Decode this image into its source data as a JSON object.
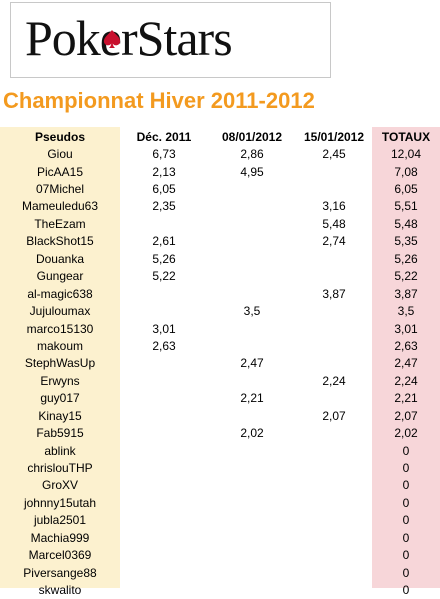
{
  "logo": {
    "text": "PokerStars"
  },
  "title": "Championnat Hiver 2011-2012",
  "columns": [
    "Pseudos",
    "Déc. 2011",
    "08/01/2012",
    "15/01/2012",
    "TOTAUX"
  ],
  "rows": [
    {
      "pseudo": "Giou",
      "dec": "6,73",
      "d0801": "2,86",
      "d1501": "2,45",
      "total": "12,04"
    },
    {
      "pseudo": "PicAA15",
      "dec": "2,13",
      "d0801": "4,95",
      "d1501": "",
      "total": "7,08"
    },
    {
      "pseudo": "07Michel",
      "dec": "6,05",
      "d0801": "",
      "d1501": "",
      "total": "6,05"
    },
    {
      "pseudo": "Mameuledu63",
      "dec": "2,35",
      "d0801": "",
      "d1501": "3,16",
      "total": "5,51"
    },
    {
      "pseudo": "TheEzam",
      "dec": "",
      "d0801": "",
      "d1501": "5,48",
      "total": "5,48"
    },
    {
      "pseudo": "BlackShot15",
      "dec": "2,61",
      "d0801": "",
      "d1501": "2,74",
      "total": "5,35"
    },
    {
      "pseudo": "Douanka",
      "dec": "5,26",
      "d0801": "",
      "d1501": "",
      "total": "5,26"
    },
    {
      "pseudo": "Gungear",
      "dec": "5,22",
      "d0801": "",
      "d1501": "",
      "total": "5,22"
    },
    {
      "pseudo": "al-magic638",
      "dec": "",
      "d0801": "",
      "d1501": "3,87",
      "total": "3,87"
    },
    {
      "pseudo": "Jujuloumax",
      "dec": "",
      "d0801": "3,5",
      "d1501": "",
      "total": "3,5"
    },
    {
      "pseudo": "marco15130",
      "dec": "3,01",
      "d0801": "",
      "d1501": "",
      "total": "3,01"
    },
    {
      "pseudo": "makoum",
      "dec": "2,63",
      "d0801": "",
      "d1501": "",
      "total": "2,63"
    },
    {
      "pseudo": "StephWasUp",
      "dec": "",
      "d0801": "2,47",
      "d1501": "",
      "total": "2,47"
    },
    {
      "pseudo": "Erwyns",
      "dec": "",
      "d0801": "",
      "d1501": "2,24",
      "total": "2,24"
    },
    {
      "pseudo": "guy017",
      "dec": "",
      "d0801": "2,21",
      "d1501": "",
      "total": "2,21"
    },
    {
      "pseudo": "Kinay15",
      "dec": "",
      "d0801": "",
      "d1501": "2,07",
      "total": "2,07"
    },
    {
      "pseudo": "Fab5915",
      "dec": "",
      "d0801": "2,02",
      "d1501": "",
      "total": "2,02"
    },
    {
      "pseudo": "ablink",
      "dec": "",
      "d0801": "",
      "d1501": "",
      "total": "0"
    },
    {
      "pseudo": "chrislouTHP",
      "dec": "",
      "d0801": "",
      "d1501": "",
      "total": "0"
    },
    {
      "pseudo": "GroXV",
      "dec": "",
      "d0801": "",
      "d1501": "",
      "total": "0"
    },
    {
      "pseudo": "johnny15utah",
      "dec": "",
      "d0801": "",
      "d1501": "",
      "total": "0"
    },
    {
      "pseudo": "jubla2501",
      "dec": "",
      "d0801": "",
      "d1501": "",
      "total": "0"
    },
    {
      "pseudo": "Machia999",
      "dec": "",
      "d0801": "",
      "d1501": "",
      "total": "0"
    },
    {
      "pseudo": "Marcel0369",
      "dec": "",
      "d0801": "",
      "d1501": "",
      "total": "0"
    },
    {
      "pseudo": "Piversange88",
      "dec": "",
      "d0801": "",
      "d1501": "",
      "total": "0"
    },
    {
      "pseudo": "skwalito",
      "dec": "",
      "d0801": "",
      "d1501": "",
      "total": "0"
    }
  ],
  "colors": {
    "title": "#f39a1f",
    "spade": "#c8102e",
    "pseudo_col": "#fcf1cf",
    "total_col": "#f7d6d9"
  }
}
